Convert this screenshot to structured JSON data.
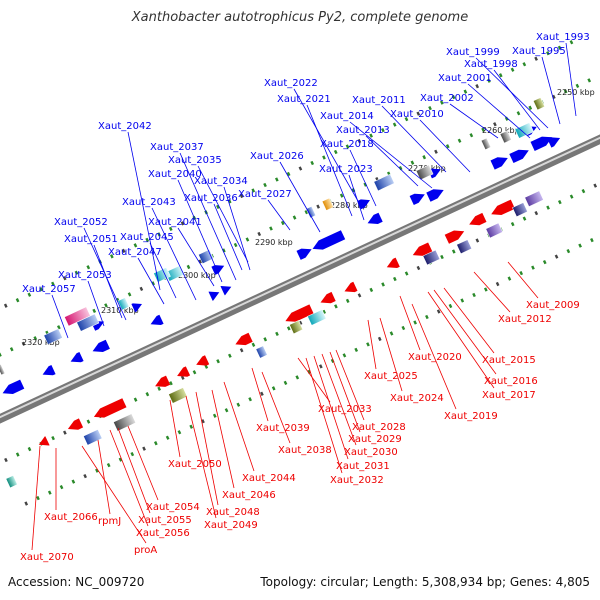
{
  "title": "Xanthobacter autotrophicus Py2, complete genome",
  "footer": {
    "accession": "Accession: NC_009720",
    "summary": "Topology: circular; Length: 5,308,934 bp; Genes: 4,805"
  },
  "colors": {
    "top_strand": "#0000ee",
    "bottom_strand": "#ee0000",
    "ruler_dot": "#2a8a2a",
    "backbone": "#888888"
  },
  "kbp_marks": [
    "2250 kbp",
    "2260 kbp",
    "2270 kbp",
    "2280 kbp",
    "2290 kbp",
    "2300 kbp",
    "2310 kbp",
    "2320 kbp"
  ],
  "top_labels": [
    "Xaut_1993",
    "Xaut_1995",
    "Xaut_1999",
    "Xaut_1998",
    "Xaut_2001",
    "Xaut_2002",
    "Xaut_2010",
    "Xaut_2011",
    "Xaut_2013",
    "Xaut_2014",
    "Xaut_2018",
    "Xaut_2021",
    "Xaut_2022",
    "Xaut_2023",
    "Xaut_2026",
    "Xaut_2027",
    "Xaut_2034",
    "Xaut_2035",
    "Xaut_2036",
    "Xaut_2037",
    "Xaut_2040",
    "Xaut_2041",
    "Xaut_2042",
    "Xaut_2043",
    "Xaut_2045",
    "Xaut_2047",
    "Xaut_2051",
    "Xaut_2052",
    "Xaut_2053",
    "Xaut_2057"
  ],
  "bottom_labels": [
    "Xaut_2009",
    "Xaut_2012",
    "Xaut_2015",
    "Xaut_2016",
    "Xaut_2017",
    "Xaut_2019",
    "Xaut_2020",
    "Xaut_2024",
    "Xaut_2025",
    "Xaut_2028",
    "Xaut_2029",
    "Xaut_2030",
    "Xaut_2031",
    "Xaut_2032",
    "Xaut_2033",
    "Xaut_2038",
    "Xaut_2039",
    "Xaut_2044",
    "Xaut_2046",
    "Xaut_2048",
    "Xaut_2049",
    "Xaut_2050",
    "Xaut_2054",
    "Xaut_2055",
    "Xaut_2056",
    "rpmJ",
    "proA",
    "Xaut_2066",
    "Xaut_2070"
  ]
}
